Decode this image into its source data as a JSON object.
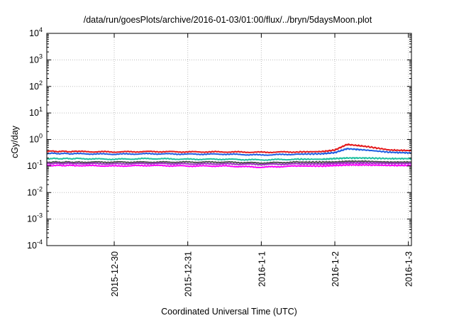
{
  "chart_data": {
    "type": "line",
    "title": "/data/run/goesPlots/archive/2016-01-03/01:00/flux/../bryn/5daysMoon.plot",
    "xlabel": "Coordinated Universal Time (UTC)",
    "ylabel": "cGy/day",
    "yscale": "log",
    "ylim": [
      0.0001,
      10000
    ],
    "y_ticks": [
      {
        "base": "10",
        "exp": "-4",
        "value": 0.0001
      },
      {
        "base": "10",
        "exp": "-3",
        "value": 0.001
      },
      {
        "base": "10",
        "exp": "-2",
        "value": 0.01
      },
      {
        "base": "10",
        "exp": "-1",
        "value": 0.1
      },
      {
        "base": "10",
        "exp": "0",
        "value": 1
      },
      {
        "base": "10",
        "exp": "1",
        "value": 10
      },
      {
        "base": "10",
        "exp": "2",
        "value": 100
      },
      {
        "base": "10",
        "exp": "3",
        "value": 1000
      },
      {
        "base": "10",
        "exp": "4",
        "value": 10000
      }
    ],
    "xlim": [
      "2015-12-29T02:00",
      "2016-01-03T01:00"
    ],
    "x_ticks": [
      {
        "label": "2015-12-30",
        "value": "2015-12-30T00:00"
      },
      {
        "label": "2015-12-31",
        "value": "2015-12-31T00:00"
      },
      {
        "label": "2016-1-1",
        "value": "2016-01-01T00:00"
      },
      {
        "label": "2016-1-2",
        "value": "2016-01-02T00:00"
      },
      {
        "label": "2016-1-3",
        "value": "2016-01-03T00:00"
      }
    ],
    "grid": true,
    "legend": "none",
    "series": [
      {
        "color": "#e41a1c",
        "x": [
          "2015-12-29T02:00",
          "2015-12-29T12:00",
          "2015-12-30T00:00",
          "2015-12-30T12:00",
          "2015-12-31T00:00",
          "2015-12-31T12:00",
          "2016-01-01T00:00",
          "2016-01-01T12:00",
          "2016-01-01T20:00",
          "2016-01-02T00:00",
          "2016-01-02T04:00",
          "2016-01-02T10:00",
          "2016-01-02T18:00",
          "2016-01-03T01:00"
        ],
        "y": [
          0.36,
          0.35,
          0.34,
          0.35,
          0.34,
          0.34,
          0.33,
          0.34,
          0.35,
          0.4,
          0.65,
          0.55,
          0.4,
          0.38
        ]
      },
      {
        "color": "#1f5fe0",
        "x": [
          "2015-12-29T02:00",
          "2015-12-29T12:00",
          "2015-12-30T00:00",
          "2015-12-30T12:00",
          "2015-12-31T00:00",
          "2015-12-31T12:00",
          "2016-01-01T00:00",
          "2016-01-01T12:00",
          "2016-01-01T20:00",
          "2016-01-02T00:00",
          "2016-01-02T04:00",
          "2016-01-02T10:00",
          "2016-01-02T18:00",
          "2016-01-03T01:00"
        ],
        "y": [
          0.3,
          0.29,
          0.28,
          0.29,
          0.28,
          0.28,
          0.26,
          0.28,
          0.29,
          0.32,
          0.45,
          0.4,
          0.33,
          0.31
        ]
      },
      {
        "color": "#20c0a0",
        "x": [
          "2015-12-29T02:00",
          "2015-12-29T12:00",
          "2015-12-30T00:00",
          "2015-12-30T12:00",
          "2015-12-31T00:00",
          "2015-12-31T12:00",
          "2016-01-01T00:00",
          "2016-01-01T12:00",
          "2016-01-01T20:00",
          "2016-01-02T00:00",
          "2016-01-02T04:00",
          "2016-01-02T10:00",
          "2016-01-02T18:00",
          "2016-01-03T01:00"
        ],
        "y": [
          0.19,
          0.19,
          0.18,
          0.19,
          0.18,
          0.18,
          0.17,
          0.18,
          0.18,
          0.19,
          0.2,
          0.2,
          0.19,
          0.19
        ]
      },
      {
        "color": "#505050",
        "x": [
          "2015-12-29T02:00",
          "2015-12-29T12:00",
          "2015-12-30T00:00",
          "2015-12-30T12:00",
          "2015-12-31T00:00",
          "2015-12-31T12:00",
          "2016-01-01T00:00",
          "2016-01-01T12:00",
          "2016-01-01T20:00",
          "2016-01-02T00:00",
          "2016-01-02T04:00",
          "2016-01-02T10:00",
          "2016-01-02T18:00",
          "2016-01-03T01:00"
        ],
        "y": [
          0.14,
          0.14,
          0.14,
          0.14,
          0.14,
          0.14,
          0.13,
          0.14,
          0.14,
          0.14,
          0.15,
          0.15,
          0.14,
          0.14
        ]
      },
      {
        "color": "#9b30c0",
        "x": [
          "2015-12-29T02:00",
          "2015-12-29T12:00",
          "2015-12-30T00:00",
          "2015-12-30T12:00",
          "2015-12-31T00:00",
          "2015-12-31T12:00",
          "2016-01-01T00:00",
          "2016-01-01T12:00",
          "2016-01-01T20:00",
          "2016-01-02T00:00",
          "2016-01-02T04:00",
          "2016-01-02T10:00",
          "2016-01-02T18:00",
          "2016-01-03T01:00"
        ],
        "y": [
          0.125,
          0.125,
          0.12,
          0.125,
          0.12,
          0.12,
          0.115,
          0.12,
          0.12,
          0.125,
          0.13,
          0.13,
          0.125,
          0.125
        ]
      },
      {
        "color": "#ff00ff",
        "x": [
          "2015-12-29T02:00",
          "2015-12-29T12:00",
          "2015-12-30T00:00",
          "2015-12-30T12:00",
          "2015-12-31T00:00",
          "2015-12-31T12:00",
          "2016-01-01T00:00",
          "2016-01-01T12:00",
          "2016-01-01T20:00",
          "2016-01-02T00:00",
          "2016-01-02T04:00",
          "2016-01-02T10:00",
          "2016-01-02T18:00",
          "2016-01-03T01:00"
        ],
        "y": [
          0.105,
          0.105,
          0.1,
          0.105,
          0.1,
          0.1,
          0.09,
          0.1,
          0.1,
          0.105,
          0.11,
          0.11,
          0.105,
          0.105
        ]
      }
    ]
  }
}
